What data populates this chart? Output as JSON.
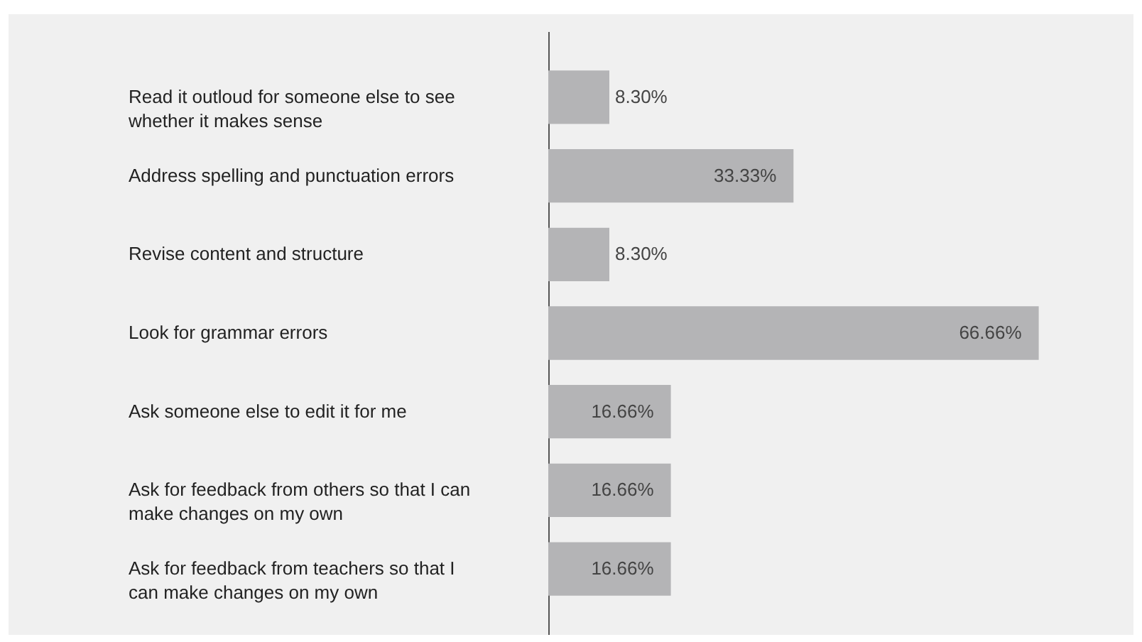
{
  "chart_data": {
    "type": "bar",
    "orientation": "horizontal",
    "categories": [
      "Read it outloud for someone else to see whether it makes sense",
      "Address spelling and punctuation errors",
      "Revise content and structure",
      "Look for grammar errors",
      "Ask someone else to edit it for me",
      "Ask for feedback from others so that I can make changes on my own",
      "Ask for feedback from teachers so that I can make changes on my own"
    ],
    "values": [
      8.3,
      33.33,
      8.3,
      66.66,
      16.66,
      16.66,
      16.66
    ],
    "value_labels": [
      "8.30%",
      "33.33%",
      "8.30%",
      "66.66%",
      "16.66%",
      "16.66%",
      "16.66%"
    ],
    "color": "#b4b4b6"
  }
}
